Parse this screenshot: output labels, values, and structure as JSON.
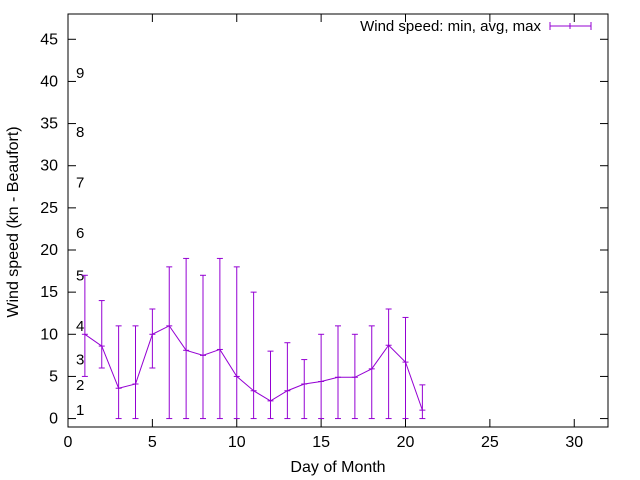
{
  "chart_data": {
    "type": "line",
    "xlabel": "Day of Month",
    "ylabel": "Wind speed (kn - Beaufort)",
    "xlim": [
      0,
      32
    ],
    "ylim": [
      -1,
      48
    ],
    "xticks": [
      0,
      5,
      10,
      15,
      20,
      25,
      30
    ],
    "yticks": [
      0,
      5,
      10,
      15,
      20,
      25,
      30,
      35,
      40,
      45
    ],
    "grid": false,
    "legend_position": "top-right",
    "series_color": "#9400d3",
    "series": [
      {
        "name": "Wind speed: min, avg, max",
        "x": [
          1,
          2,
          3,
          4,
          5,
          6,
          7,
          8,
          9,
          10,
          11,
          12,
          13,
          14,
          15,
          16,
          17,
          18,
          19,
          20,
          21
        ],
        "y": [
          10,
          8.6,
          3.6,
          4.1,
          10,
          11,
          8.1,
          7.5,
          8.2,
          5,
          3.3,
          2.1,
          3.3,
          4.1,
          4.4,
          4.9,
          4.9,
          5.9,
          8.7,
          6.7,
          1
        ],
        "min": [
          5,
          6,
          0,
          0,
          6,
          0,
          0,
          0,
          0,
          0,
          0,
          0,
          0,
          0,
          0,
          0,
          0,
          0,
          0,
          0,
          0
        ],
        "max": [
          17,
          14,
          11,
          11,
          13,
          18,
          19,
          17,
          19,
          18,
          15,
          8,
          9,
          7,
          10,
          11,
          10,
          11,
          13,
          12,
          4
        ]
      }
    ],
    "beaufort_labels": [
      {
        "label": "1",
        "y": 1
      },
      {
        "label": "2",
        "y": 4
      },
      {
        "label": "3",
        "y": 7
      },
      {
        "label": "4",
        "y": 11
      },
      {
        "label": "5",
        "y": 17
      },
      {
        "label": "6",
        "y": 22
      },
      {
        "label": "7",
        "y": 28
      },
      {
        "label": "8",
        "y": 34
      },
      {
        "label": "9",
        "y": 41
      }
    ]
  }
}
